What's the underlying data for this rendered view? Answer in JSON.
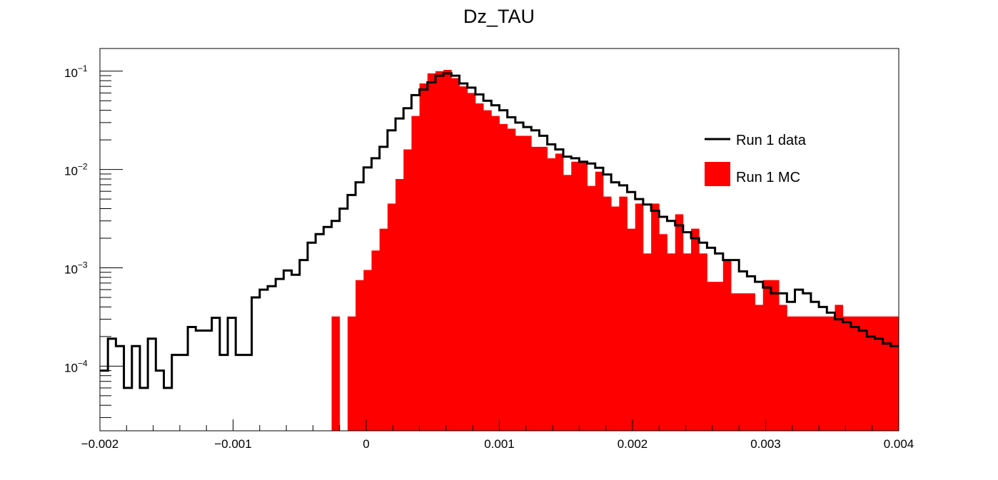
{
  "chart_data": {
    "type": "histogram",
    "title": "Dz_TAU",
    "xlabel": "",
    "ylabel": "",
    "xlim": [
      -0.002,
      0.004
    ],
    "ylim": [
      2.2e-05,
      0.17
    ],
    "y_scale": "log",
    "grid": false,
    "legend_position": "top-right",
    "x_ticks": [
      {
        "value": -0.002,
        "label": "−0.002"
      },
      {
        "value": -0.001,
        "label": "−0.001"
      },
      {
        "value": 0,
        "label": "0"
      },
      {
        "value": 0.001,
        "label": "0.001"
      },
      {
        "value": 0.002,
        "label": "0.002"
      },
      {
        "value": 0.003,
        "label": "0.003"
      },
      {
        "value": 0.004,
        "label": "0.004"
      }
    ],
    "y_ticks": [
      {
        "value": 0.1,
        "base": "10",
        "exp": "−1"
      },
      {
        "value": 0.01,
        "base": "10",
        "exp": "−2"
      },
      {
        "value": 0.001,
        "base": "10",
        "exp": "−3"
      },
      {
        "value": 0.0001,
        "base": "10",
        "exp": "−4"
      }
    ],
    "bin_edges_start": -0.002,
    "bin_width": 6e-05,
    "series": [
      {
        "name": "Run 1 MC",
        "style": "filled",
        "color": "#ff0000",
        "values": [
          0,
          0,
          0,
          0,
          0,
          0,
          0,
          0,
          0,
          0,
          0,
          0,
          0,
          0,
          0,
          0,
          0,
          0,
          0,
          0,
          0,
          0,
          0,
          0,
          0,
          0,
          0,
          0,
          0,
          0.00032,
          0,
          0.00032,
          0.00075,
          0.00095,
          0.0015,
          0.0025,
          0.0045,
          0.008,
          0.016,
          0.035,
          0.075,
          0.095,
          0.1,
          0.103,
          0.085,
          0.07,
          0.06,
          0.047,
          0.04,
          0.035,
          0.029,
          0.026,
          0.022,
          0.022,
          0.017,
          0.017,
          0.013,
          0.0145,
          0.0088,
          0.012,
          0.012,
          0.0068,
          0.0095,
          0.0053,
          0.0042,
          0.0053,
          0.0025,
          0.0045,
          0.0014,
          0.0045,
          0.0022,
          0.0014,
          0.0035,
          0.0014,
          0.0025,
          0.0014,
          0.00072,
          0.00072,
          0.0012,
          0.00055,
          0.00055,
          0.00055,
          0.00042,
          0.00075,
          0.00075,
          0.00042,
          0.00032,
          0.00032,
          0.00032,
          0.00032,
          0.00032,
          0.00032,
          0.00042,
          0.00032,
          0.00032,
          0.00032,
          0.00032,
          0.00032,
          0.00032,
          0.00032
        ],
        "values_note_exclude": []
      },
      {
        "name": "Run 1 data",
        "style": "line",
        "color": "#000000",
        "values": [
          9e-05,
          0.00019,
          0.00016,
          6e-05,
          0.00016,
          6e-05,
          0.00019,
          9e-05,
          6e-05,
          0.00013,
          0.00013,
          0.00025,
          0.00023,
          0.00023,
          0.00031,
          0.00013,
          0.00031,
          0.00013,
          0.00013,
          0.0005,
          0.0006,
          0.00065,
          0.00077,
          0.00094,
          0.00085,
          0.0012,
          0.0018,
          0.0022,
          0.0026,
          0.003,
          0.004,
          0.0055,
          0.0074,
          0.0105,
          0.013,
          0.017,
          0.025,
          0.033,
          0.042,
          0.057,
          0.065,
          0.077,
          0.09,
          0.095,
          0.09,
          0.075,
          0.068,
          0.058,
          0.05,
          0.045,
          0.04,
          0.034,
          0.03,
          0.027,
          0.025,
          0.022,
          0.018,
          0.016,
          0.0135,
          0.013,
          0.012,
          0.0115,
          0.0104,
          0.0089,
          0.0074,
          0.0069,
          0.0059,
          0.005,
          0.0044,
          0.0038,
          0.0033,
          0.003,
          0.0027,
          0.0023,
          0.002,
          0.0018,
          0.0016,
          0.0014,
          0.0012,
          0.0012,
          0.00092,
          0.00082,
          0.00072,
          0.00063,
          0.00055,
          0.00055,
          0.00045,
          0.0006,
          0.00055,
          0.00045,
          0.0004,
          0.00035,
          0.0003,
          0.00028,
          0.00025,
          0.00023,
          0.0002,
          0.00019,
          0.00017,
          0.00016
        ]
      }
    ],
    "legend": [
      {
        "label": "Run 1 data",
        "style": "line",
        "color": "#000000"
      },
      {
        "label": "Run 1 MC",
        "style": "filled",
        "color": "#ff0000"
      }
    ]
  }
}
